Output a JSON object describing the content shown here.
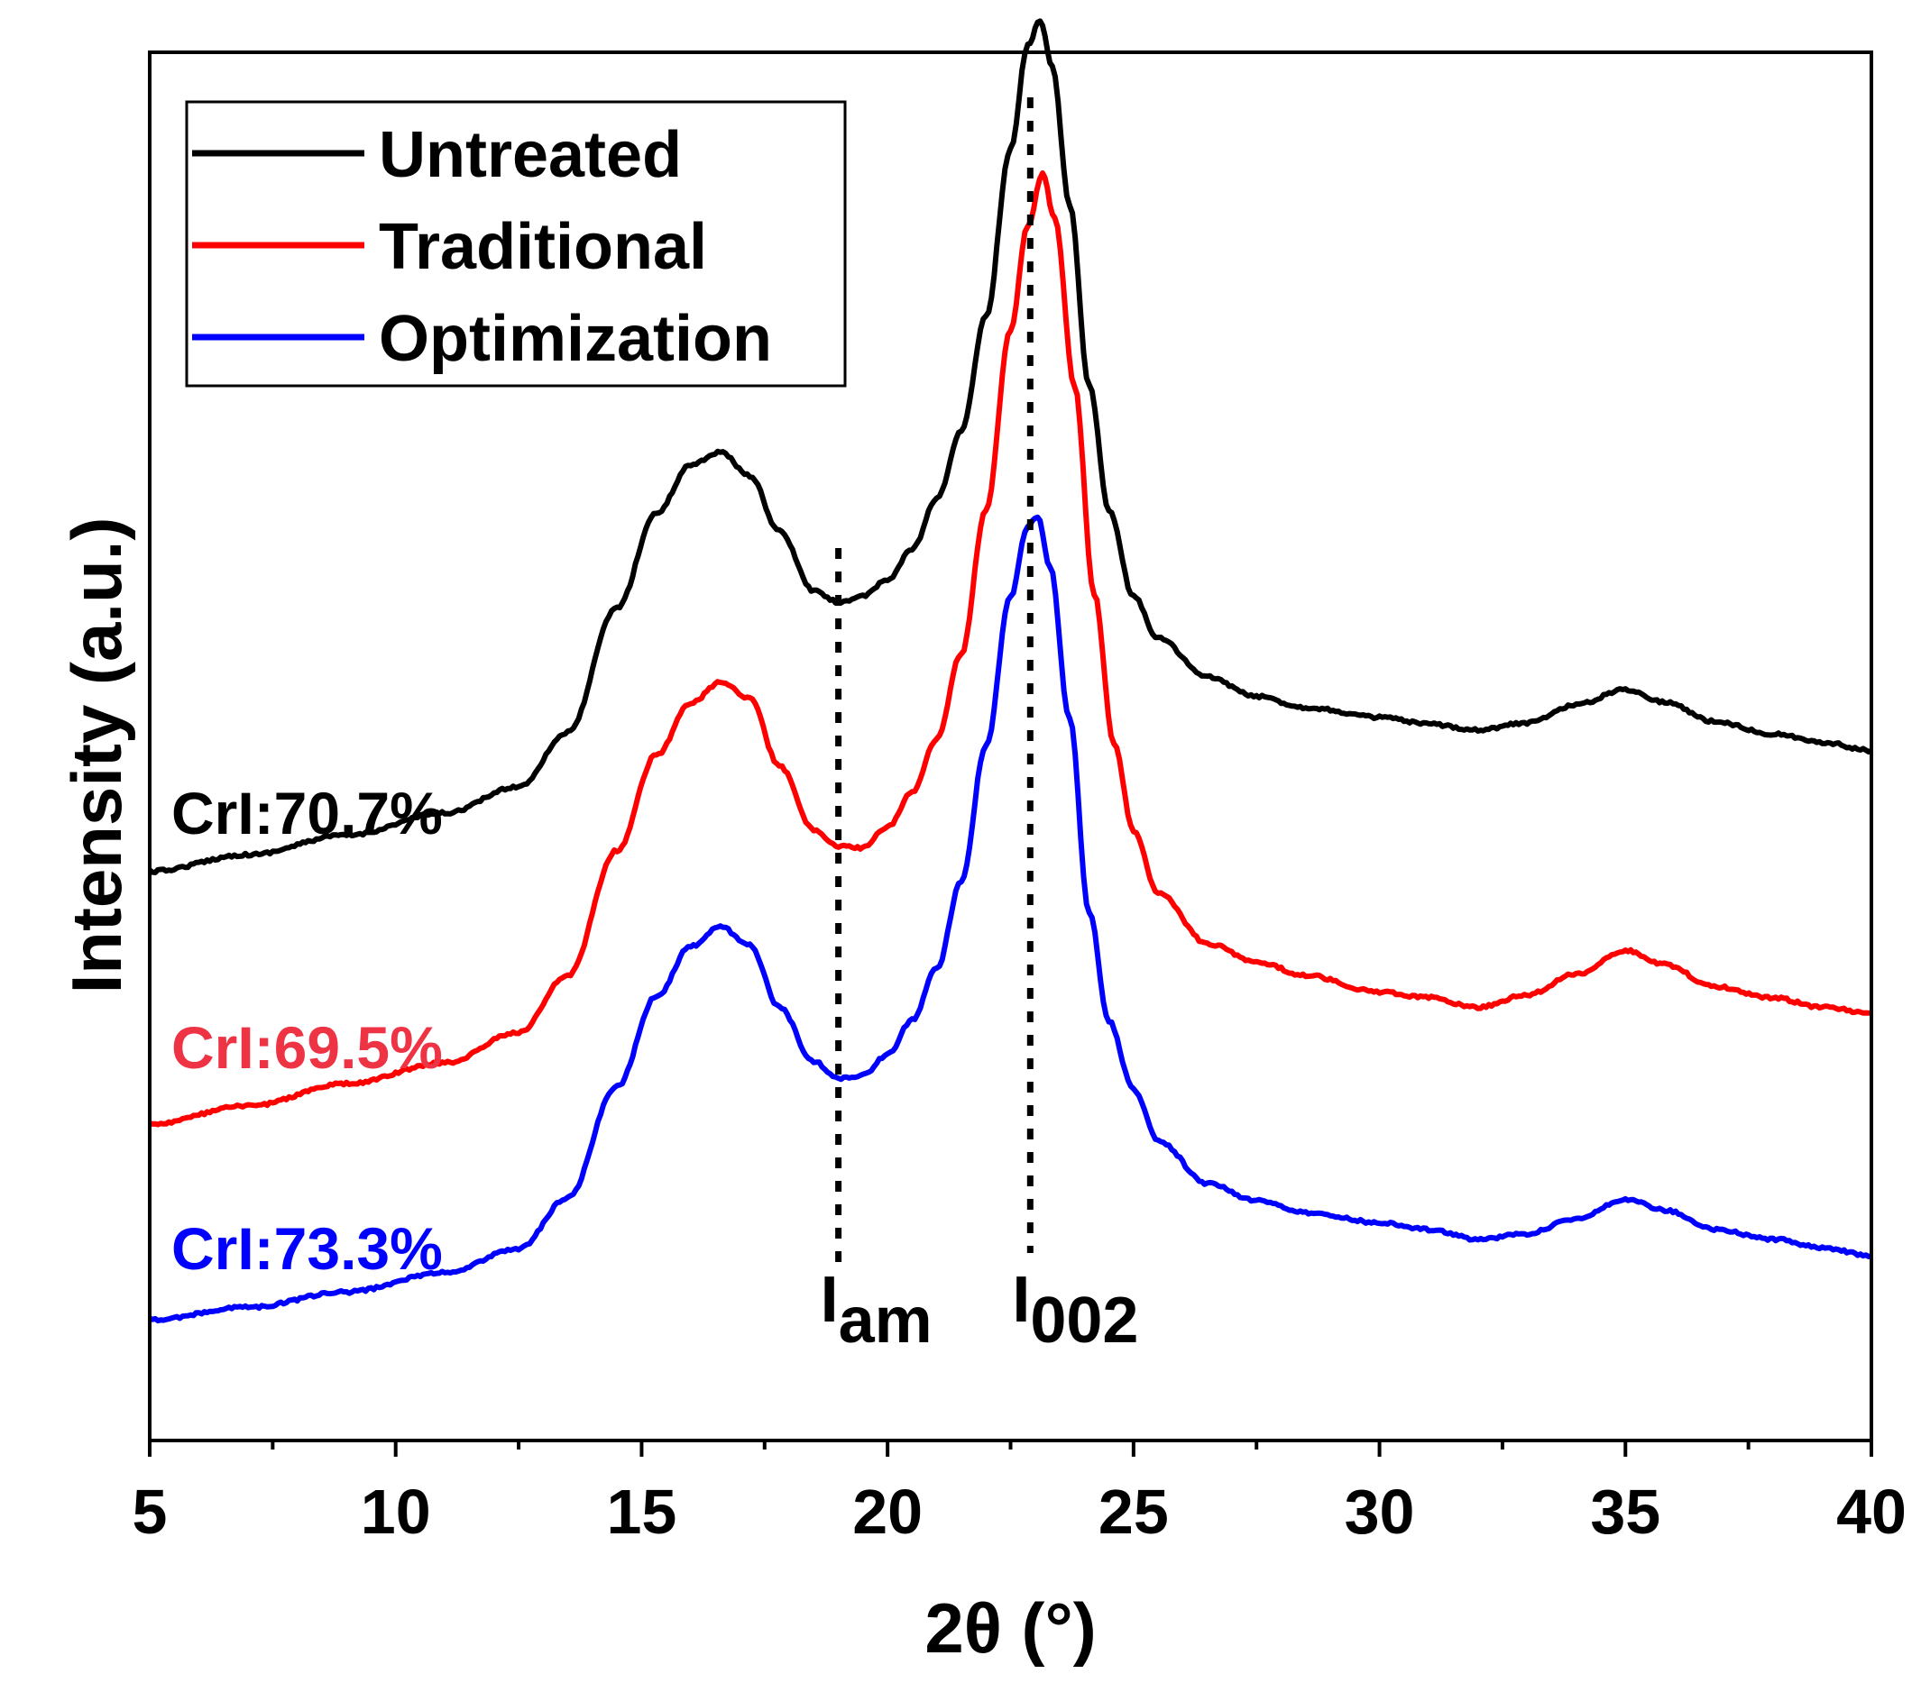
{
  "chart_data": {
    "type": "line",
    "xlabel": "2θ (°)",
    "ylabel": "Intensity (a.u.)",
    "xlim": [
      5,
      40
    ],
    "ylim": [
      0,
      100
    ],
    "x_ticks": [
      "5",
      "10",
      "15",
      "20",
      "25",
      "30",
      "35",
      "40"
    ],
    "legend_position": "top-left",
    "grid": false,
    "series": [
      {
        "name": "Untreated",
        "color": "#000000",
        "annotation": "CrI:70.7%",
        "annotation_color": "#000000",
        "points": [
          [
            5,
            41
          ],
          [
            7,
            42.2
          ],
          [
            9,
            43.6
          ],
          [
            11,
            45.2
          ],
          [
            12.5,
            47.1
          ],
          [
            13.5,
            51
          ],
          [
            14.5,
            60
          ],
          [
            15.3,
            66.8
          ],
          [
            16,
            70.3
          ],
          [
            16.6,
            71.2
          ],
          [
            17.2,
            69.5
          ],
          [
            17.8,
            65.5
          ],
          [
            18.5,
            61.2
          ],
          [
            19,
            60.4
          ],
          [
            19.5,
            60.8
          ],
          [
            20,
            62
          ],
          [
            20.5,
            64.2
          ],
          [
            21,
            67.8
          ],
          [
            21.5,
            72.7
          ],
          [
            22,
            81
          ],
          [
            22.5,
            93
          ],
          [
            22.85,
            100.5
          ],
          [
            23.1,
            102.3
          ],
          [
            23.35,
            99
          ],
          [
            23.7,
            89
          ],
          [
            24.1,
            76
          ],
          [
            24.5,
            67
          ],
          [
            25,
            60.8
          ],
          [
            25.5,
            57.8
          ],
          [
            26.5,
            55
          ],
          [
            27.5,
            53.6
          ],
          [
            28.5,
            52.8
          ],
          [
            30,
            52.1
          ],
          [
            31,
            51.6
          ],
          [
            32,
            51.2
          ],
          [
            33,
            51.7
          ],
          [
            34,
            53
          ],
          [
            35,
            54.1
          ],
          [
            35.8,
            53.2
          ],
          [
            36.8,
            51.8
          ],
          [
            38,
            50.9
          ],
          [
            39,
            50.3
          ],
          [
            40,
            49.7
          ]
        ]
      },
      {
        "name": "Traditional",
        "color": "#ff0000",
        "annotation": "CrI:69.5%",
        "annotation_color": "#ee3344",
        "points": [
          [
            5,
            22.8
          ],
          [
            7,
            24.1
          ],
          [
            9,
            25.7
          ],
          [
            11,
            27.2
          ],
          [
            12.5,
            29.4
          ],
          [
            13.5,
            33.5
          ],
          [
            14.5,
            42.5
          ],
          [
            15.3,
            49.4
          ],
          [
            16,
            53.1
          ],
          [
            16.6,
            54.6
          ],
          [
            17.2,
            53.5
          ],
          [
            17.8,
            48.6
          ],
          [
            18.5,
            44
          ],
          [
            19,
            42.8
          ],
          [
            19.5,
            42.7
          ],
          [
            20,
            44.2
          ],
          [
            20.5,
            46.7
          ],
          [
            21,
            50.5
          ],
          [
            21.5,
            56.7
          ],
          [
            22,
            67
          ],
          [
            22.5,
            80
          ],
          [
            22.85,
            87.5
          ],
          [
            23.15,
            91.2
          ],
          [
            23.4,
            88
          ],
          [
            23.8,
            76
          ],
          [
            24.2,
            61
          ],
          [
            24.6,
            50.2
          ],
          [
            25,
            43.9
          ],
          [
            25.5,
            39.5
          ],
          [
            26.5,
            35.8
          ],
          [
            27.5,
            34.5
          ],
          [
            28.5,
            33.5
          ],
          [
            30,
            32.3
          ],
          [
            31,
            31.9
          ],
          [
            32,
            31.2
          ],
          [
            33,
            32.1
          ],
          [
            34,
            33.6
          ],
          [
            35,
            35.3
          ],
          [
            35.8,
            34.3
          ],
          [
            36.8,
            32.7
          ],
          [
            38,
            31.9
          ],
          [
            39,
            31.2
          ],
          [
            40,
            30.8
          ]
        ]
      },
      {
        "name": "Optimization",
        "color": "#0000ff",
        "annotation": "CrI:73.3%",
        "annotation_color": "#0000ff",
        "points": [
          [
            5,
            8.7
          ],
          [
            7,
            9.6
          ],
          [
            9,
            10.7
          ],
          [
            11,
            12.1
          ],
          [
            12.5,
            13.8
          ],
          [
            13.5,
            17.5
          ],
          [
            14.5,
            25.5
          ],
          [
            15.3,
            32
          ],
          [
            16,
            35.6
          ],
          [
            16.6,
            37
          ],
          [
            17.2,
            35.7
          ],
          [
            17.8,
            31.2
          ],
          [
            18.5,
            27.3
          ],
          [
            19,
            26.1
          ],
          [
            19.5,
            26.3
          ],
          [
            20,
            27.8
          ],
          [
            20.5,
            30.3
          ],
          [
            21,
            34
          ],
          [
            21.5,
            40.3
          ],
          [
            22,
            50
          ],
          [
            22.5,
            60.8
          ],
          [
            22.85,
            65.8
          ],
          [
            23.05,
            66.6
          ],
          [
            23.3,
            63
          ],
          [
            23.7,
            52
          ],
          [
            24.1,
            38
          ],
          [
            24.5,
            30.2
          ],
          [
            25,
            25.3
          ],
          [
            25.5,
            21.6
          ],
          [
            26.5,
            18.5
          ],
          [
            27.5,
            17.3
          ],
          [
            28.5,
            16.4
          ],
          [
            30,
            15.7
          ],
          [
            31,
            15.2
          ],
          [
            32,
            14.5
          ],
          [
            33,
            14.9
          ],
          [
            34,
            16
          ],
          [
            35,
            17.4
          ],
          [
            35.8,
            16.6
          ],
          [
            36.8,
            15.2
          ],
          [
            38,
            14.5
          ],
          [
            39,
            13.9
          ],
          [
            40,
            13.3
          ]
        ]
      }
    ],
    "reference_lines": [
      {
        "x": 19,
        "label_main": "I",
        "label_sub": "am"
      },
      {
        "x": 22.9,
        "label_main": "I",
        "label_sub": "002"
      }
    ]
  }
}
